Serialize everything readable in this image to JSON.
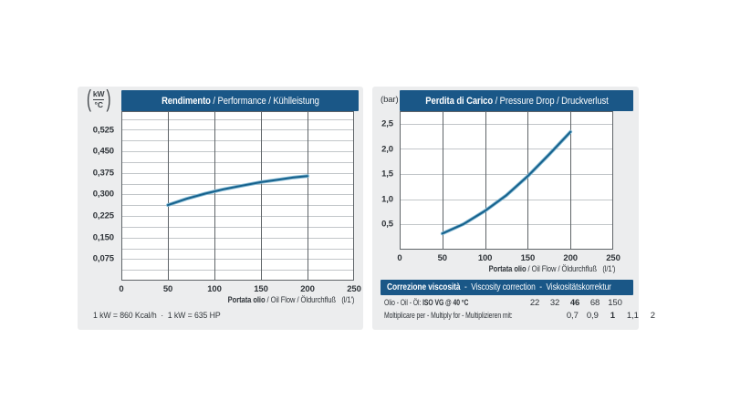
{
  "colors": {
    "header_blue": "#1a5787",
    "curve_main": "#16618c",
    "curve_halo": "#82b8d3",
    "panel_bg": "#ecedee",
    "grid_light": "#c2c6c9",
    "grid_dark": "#5f6468",
    "plot_bg": "#ffffff"
  },
  "chart_data": [
    {
      "type": "line",
      "title_bold": "Rendimento",
      "title_rest": " / Performance / Kühlleistung",
      "y_unit_numerator": "kW",
      "y_unit_denominator": "°C",
      "xlabel_bold": "Portata olio",
      "xlabel_rest": " / Oil Flow / Öldurchfluß",
      "xlabel_unit": "(l/1')",
      "xlim": [
        0,
        250
      ],
      "ylim": [
        0,
        0.59
      ],
      "grid": true,
      "legend": false,
      "x_ticks": [
        {
          "v": 0,
          "label": "0"
        },
        {
          "v": 50,
          "label": "50"
        },
        {
          "v": 100,
          "label": "100"
        },
        {
          "v": 150,
          "label": "150"
        },
        {
          "v": 200,
          "label": "200"
        },
        {
          "v": 250,
          "label": "250"
        }
      ],
      "y_ticks": [
        {
          "v": 0.075,
          "label": "0,075"
        },
        {
          "v": 0.15,
          "label": "0,150"
        },
        {
          "v": 0.225,
          "label": "0,225"
        },
        {
          "v": 0.3,
          "label": "0,300"
        },
        {
          "v": 0.375,
          "label": "0,375"
        },
        {
          "v": 0.45,
          "label": "0,450"
        },
        {
          "v": 0.525,
          "label": "0,525"
        }
      ],
      "y_minor_step": 0.0375,
      "points": [
        [
          50,
          0.263
        ],
        [
          70,
          0.285
        ],
        [
          90,
          0.303
        ],
        [
          110,
          0.318
        ],
        [
          130,
          0.331
        ],
        [
          150,
          0.343
        ],
        [
          170,
          0.352
        ],
        [
          185,
          0.359
        ],
        [
          200,
          0.364
        ]
      ]
    },
    {
      "type": "line",
      "title_bold": "Perdita di Carico",
      "title_rest": " / Pressure Drop / Druckverlust",
      "y_unit_text": "(bar)",
      "xlabel_bold": "Portata olio",
      "xlabel_rest": " / Oil Flow / Öldurchfluß",
      "xlabel_unit": "(l/1')",
      "xlim": [
        0,
        250
      ],
      "ylim": [
        0,
        2.75
      ],
      "grid": true,
      "legend": false,
      "x_ticks": [
        {
          "v": 0,
          "label": "0"
        },
        {
          "v": 50,
          "label": "50"
        },
        {
          "v": 100,
          "label": "100"
        },
        {
          "v": 150,
          "label": "150"
        },
        {
          "v": 200,
          "label": "200"
        },
        {
          "v": 250,
          "label": "250"
        }
      ],
      "y_ticks": [
        {
          "v": 0.5,
          "label": "0,5"
        },
        {
          "v": 1.0,
          "label": "1,0"
        },
        {
          "v": 1.5,
          "label": "1,5"
        },
        {
          "v": 2.0,
          "label": "2,0"
        },
        {
          "v": 2.5,
          "label": "2,5"
        }
      ],
      "points": [
        [
          50,
          0.32
        ],
        [
          75,
          0.51
        ],
        [
          100,
          0.77
        ],
        [
          125,
          1.08
        ],
        [
          150,
          1.46
        ],
        [
          175,
          1.89
        ],
        [
          200,
          2.34
        ]
      ]
    }
  ],
  "footnote": "1 kW = 860 Kcal/h  ·  1 kW = 635 HP",
  "viscosity_table": {
    "title_bold": "Correzione viscosità",
    "title_rest": "  -  Viscosity correction  -  Viskositätskorrektur",
    "rows": [
      {
        "label_plain": "Olio - Oil - Öl: ",
        "label_bold": "ISO VG @ 40 °C",
        "values": [
          "22",
          "32",
          "46",
          "68",
          "150"
        ],
        "bold_index": 2
      },
      {
        "label_plain": "Moltiplicare per - Multiply for - Multiplizieren mit:",
        "label_bold": "",
        "values": [
          "0,7",
          "0,9",
          "1",
          "1,1",
          "2"
        ],
        "bold_index": 2
      }
    ]
  }
}
